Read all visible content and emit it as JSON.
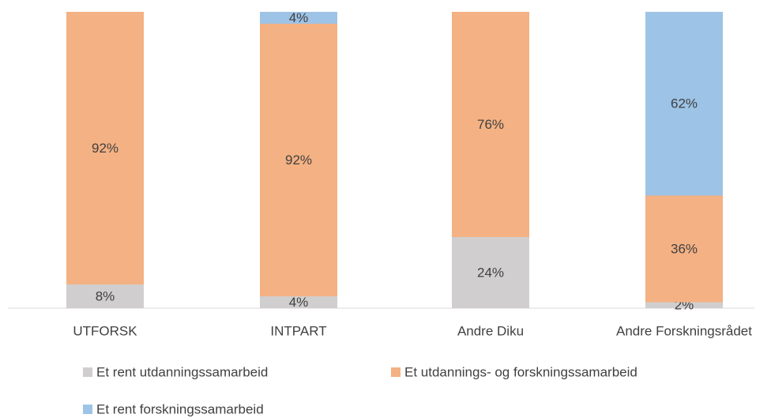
{
  "chart_data": {
    "type": "stacked_bar",
    "categories": [
      "UTFORSK",
      "INTPART",
      "Andre Diku",
      "Andre Forskningsrådet"
    ],
    "series": [
      {
        "name": "Et rent utdanningssamarbeid",
        "color": "#d0cece",
        "values": [
          8,
          4,
          24,
          2
        ],
        "value_labels": [
          "8%",
          "4%",
          "24%",
          "2%"
        ]
      },
      {
        "name": "Et utdannings- og forskningssamarbeid",
        "color": "#f4b183",
        "values": [
          92,
          92,
          76,
          36
        ],
        "value_labels": [
          "92%",
          "92%",
          "76%",
          "36%"
        ]
      },
      {
        "name": "Et rent forskningssamarbeid",
        "color": "#9dc3e6",
        "values": [
          0,
          4,
          0,
          62
        ],
        "value_labels": [
          null,
          "4%",
          null,
          "62%"
        ]
      }
    ],
    "ylim": [
      0,
      100
    ]
  }
}
